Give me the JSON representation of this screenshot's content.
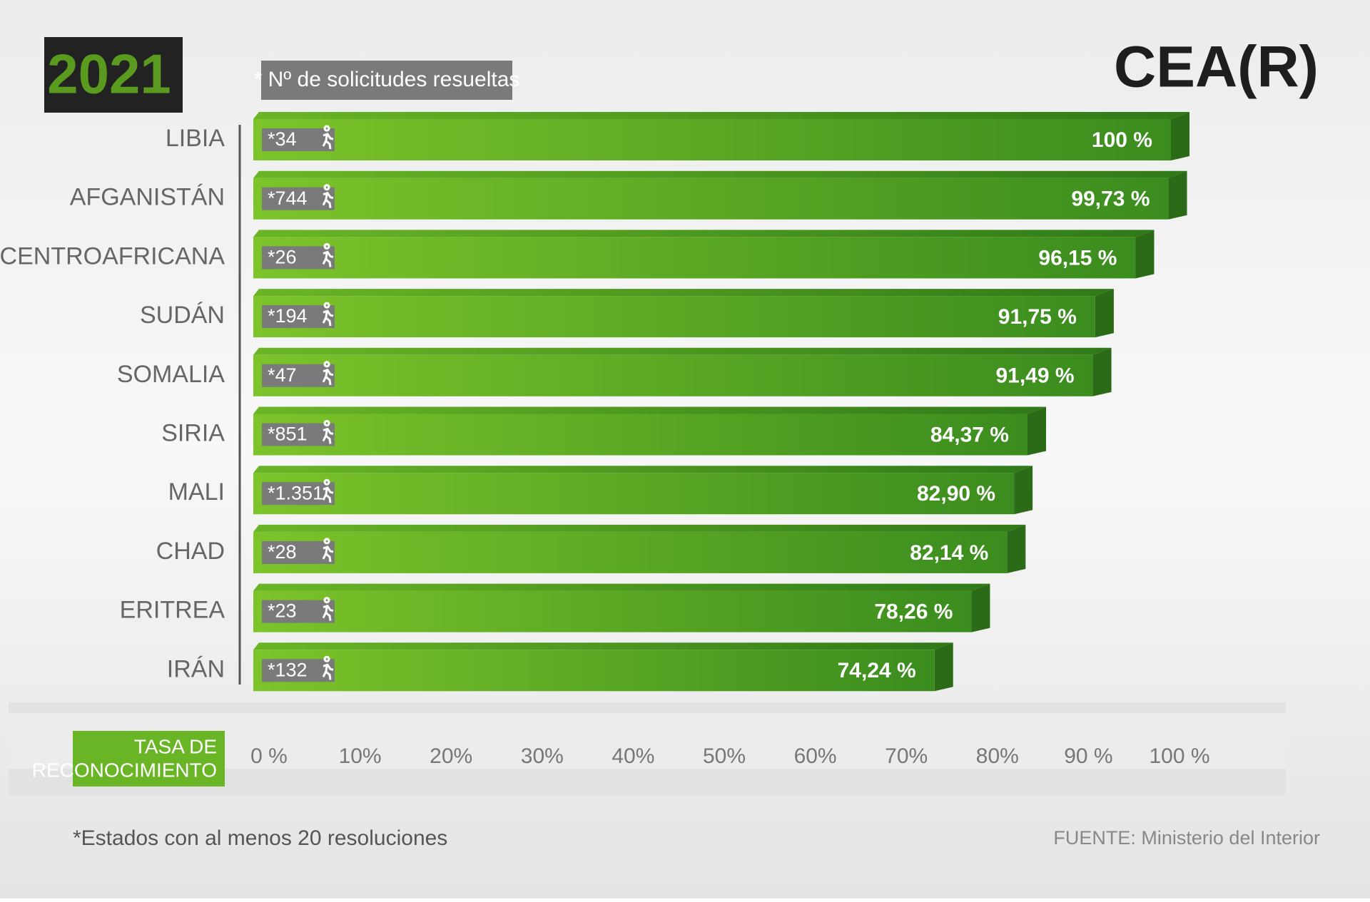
{
  "chart_data": {
    "type": "bar",
    "orientation": "horizontal",
    "year": "2021",
    "legend_note": "* Nº de solicitudes resueltas",
    "logo": "CEA(R)",
    "categories": [
      "LIBIA",
      "AFGANISTÁN",
      "REP. CENTROAFRICANA",
      "SUDÁN",
      "SOMALIA",
      "SIRIA",
      "MALI",
      "CHAD",
      "ERITREA",
      "IRÁN"
    ],
    "values": [
      100,
      99.73,
      96.15,
      91.75,
      91.49,
      84.37,
      82.9,
      82.14,
      78.26,
      74.24
    ],
    "value_labels": [
      "100 %",
      "99,73 %",
      "96,15 %",
      "91,75 %",
      "91,49 %",
      "84,37 %",
      "82,90 %",
      "82,14 %",
      "78,26 %",
      "74,24 %"
    ],
    "count_labels": [
      "*34",
      "*744",
      "*26",
      "*194",
      "*47",
      "*851",
      "*1.351",
      "*28",
      "*23",
      "*132"
    ],
    "color": "#5aa822",
    "xlim": [
      0,
      100
    ],
    "xticks": [
      {
        "value": 0,
        "label": "0 %"
      },
      {
        "value": 10,
        "label": "10%"
      },
      {
        "value": 20,
        "label": "20%"
      },
      {
        "value": 30,
        "label": "30%"
      },
      {
        "value": 40,
        "label": "40%"
      },
      {
        "value": 50,
        "label": "50%"
      },
      {
        "value": 60,
        "label": "60%"
      },
      {
        "value": 70,
        "label": "70%"
      },
      {
        "value": 80,
        "label": "80%"
      },
      {
        "value": 90,
        "label": "90 %"
      },
      {
        "value": 100,
        "label": "100 %"
      }
    ],
    "xlabel": [
      "TASA DE",
      "RECONOCIMIENTO"
    ],
    "footnote": "*Estados con al menos 20 resoluciones",
    "source": "FUENTE: Ministerio del Interior"
  }
}
